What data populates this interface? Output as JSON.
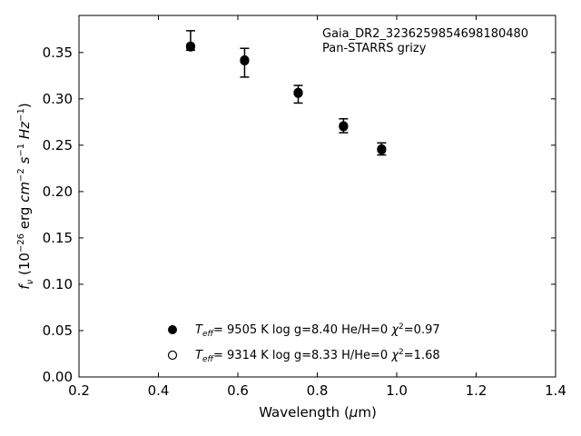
{
  "chart_data": {
    "type": "scatter",
    "title": "",
    "xlabel": "Wavelength (μm)",
    "ylabel": "f_ν (10^-26 erg cm^-2 s^-1 Hz^-1)",
    "xlim": [
      0.2,
      1.4
    ],
    "ylim": [
      0.0,
      0.39
    ],
    "x_ticks": [
      0.2,
      0.4,
      0.6,
      0.8,
      1.0,
      1.2,
      1.4
    ],
    "x_tick_labels": [
      "0.2",
      "0.4",
      "0.6",
      "0.8",
      "1.0",
      "1.2",
      "1.4"
    ],
    "y_ticks": [
      0.0,
      0.05,
      0.1,
      0.15,
      0.2,
      0.25,
      0.3,
      0.35
    ],
    "y_tick_labels": [
      "0.00",
      "0.05",
      "0.10",
      "0.15",
      "0.20",
      "0.25",
      "0.30",
      "0.35"
    ],
    "grid": false,
    "legend_position": "lower-center",
    "annotation": {
      "line1": "Gaia_DR2_3236259854698180480",
      "line2": "Pan-STARRS grizy"
    },
    "observed": {
      "x": [
        0.481,
        0.617,
        0.752,
        0.866,
        0.962
      ],
      "y": [
        0.363,
        0.339,
        0.305,
        0.271,
        0.246
      ],
      "yerr_low": [
        0.0105,
        0.0155,
        0.0095,
        0.0075,
        0.0065
      ],
      "yerr_high": [
        0.0105,
        0.0155,
        0.0095,
        0.0075,
        0.0065
      ],
      "color": "#000000"
    },
    "series": [
      {
        "marker": "filled",
        "x": [
          0.481,
          0.617,
          0.752,
          0.866,
          0.962
        ],
        "y": [
          0.356,
          0.341,
          0.306,
          0.27,
          0.245
        ],
        "legend": {
          "teff": "9505 K",
          "logg": "log g=8.40",
          "comp": "He/H=0",
          "chi2": "=0.97"
        }
      },
      {
        "marker": "open",
        "x": [
          0.481,
          0.617,
          0.752,
          0.866,
          0.962
        ],
        "y": [
          0.357,
          0.342,
          0.307,
          0.271,
          0.246
        ],
        "legend": {
          "teff": "9314 K",
          "logg": "log g=8.33",
          "comp": "H/He=0",
          "chi2": "=1.68"
        }
      }
    ]
  }
}
